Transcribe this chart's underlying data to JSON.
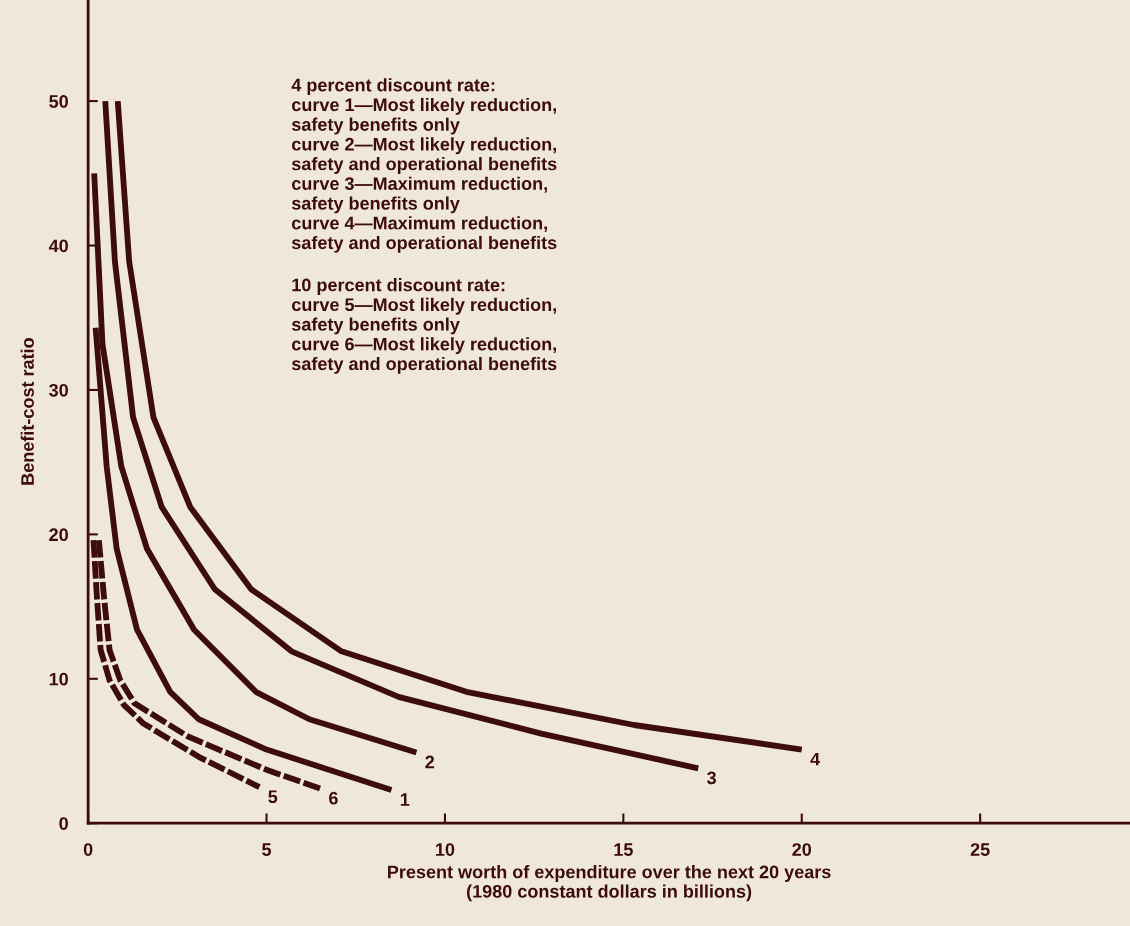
{
  "chart_data": {
    "type": "line",
    "xlabel": "Present worth of expenditure over the next 20 years\n(1980 constant dollars in billions)",
    "ylabel": "Benefit-cost ratio",
    "xlim": [
      0,
      29.2
    ],
    "ylim": [
      0,
      57
    ],
    "xticks": [
      0,
      5,
      10,
      15,
      20,
      25
    ],
    "yticks": [
      0,
      10,
      20,
      30,
      40,
      50
    ],
    "grid": false,
    "legend": false,
    "marker": "none",
    "series": [
      {
        "name": "1",
        "color": "#3d0c0c",
        "line_style": "solid",
        "x": [
          0.21,
          0.52,
          0.8,
          1.37,
          2.3,
          3.1,
          5.0,
          8.5
        ],
        "values": [
          34.3,
          24.7,
          19.0,
          13.4,
          9.1,
          7.2,
          5.1,
          2.3
        ]
      },
      {
        "name": "2",
        "color": "#3d0c0c",
        "line_style": "solid",
        "x": [
          0.17,
          0.4,
          0.93,
          1.65,
          2.97,
          4.7,
          6.2,
          9.2
        ],
        "values": [
          45.0,
          33.2,
          24.7,
          19.0,
          13.4,
          9.1,
          7.2,
          4.9
        ]
      },
      {
        "name": "3",
        "color": "#3d0c0c",
        "line_style": "solid",
        "x": [
          0.48,
          0.75,
          1.26,
          2.06,
          3.55,
          5.7,
          8.7,
          12.7,
          17.1
        ],
        "values": [
          50.0,
          38.9,
          28.1,
          21.9,
          16.2,
          11.9,
          8.75,
          6.2,
          3.8
        ]
      },
      {
        "name": "4",
        "color": "#3d0c0c",
        "line_style": "solid",
        "x": [
          0.83,
          1.15,
          1.83,
          2.86,
          4.57,
          7.1,
          10.6,
          15.3,
          20.0
        ],
        "values": [
          50.0,
          38.9,
          28.1,
          21.9,
          16.2,
          11.9,
          9.1,
          6.8,
          5.1
        ]
      },
      {
        "name": "5",
        "color": "#3d0c0c",
        "line_style": "dashed",
        "x": [
          0.15,
          0.25,
          0.35,
          0.6,
          1.0,
          1.55,
          3.1,
          4.8
        ],
        "values": [
          19.6,
          15.5,
          12.0,
          9.9,
          8.2,
          6.9,
          4.6,
          2.5
        ]
      },
      {
        "name": "6",
        "color": "#3d0c0c",
        "line_style": "dashed",
        "x": [
          0.3,
          0.45,
          0.6,
          0.9,
          1.3,
          2.8,
          5.0,
          6.5
        ],
        "values": [
          19.6,
          15.5,
          12.0,
          9.9,
          8.3,
          6.0,
          3.7,
          2.4
        ]
      }
    ],
    "annotations": [
      "4 percent discount rate:\ncurve 1—Most likely reduction,\nsafety benefits only\ncurve 2—Most likely reduction,\nsafety and operational benefits\ncurve 3—Maximum reduction,\nsafety benefits only\ncurve 4—Maximum reduction,\nsafety and operational benefits",
      "10 percent discount rate:\ncurve 5—Most likely reduction,\nsafety benefits only\ncurve 6—Most likely reduction,\nsafety and operational benefits"
    ]
  }
}
